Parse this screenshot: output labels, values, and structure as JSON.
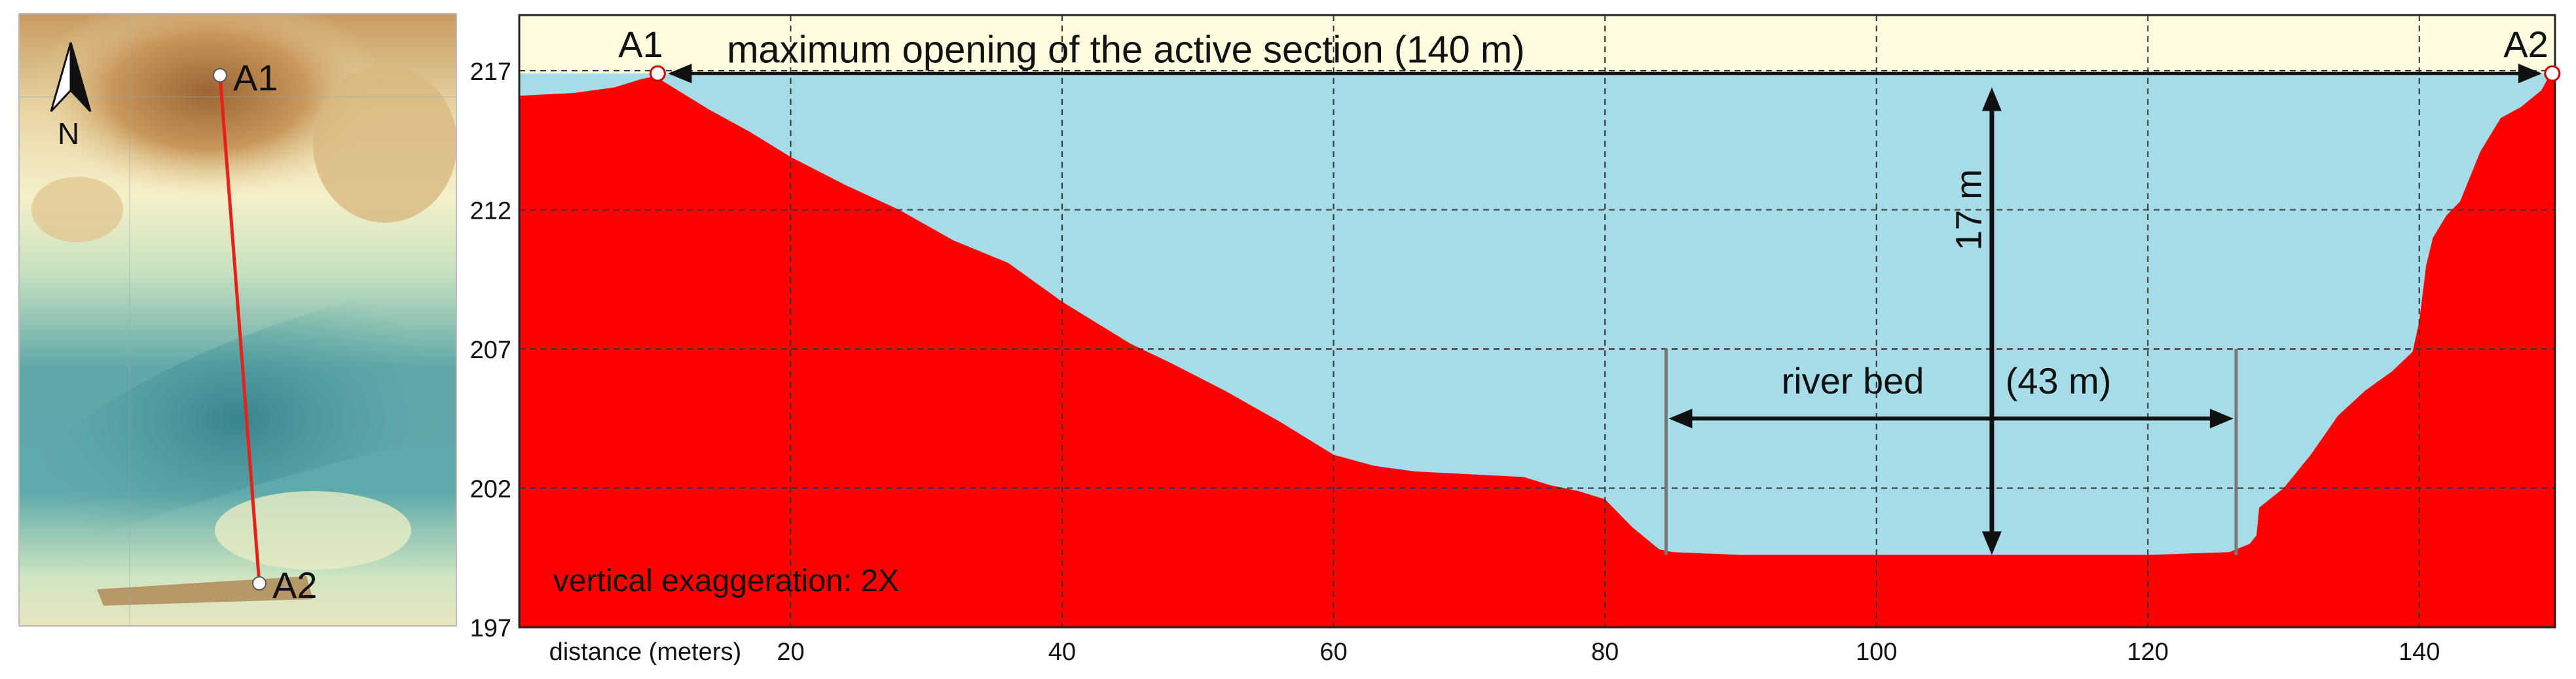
{
  "map": {
    "north_label": "N",
    "point_start_label": "A1",
    "point_end_label": "A2",
    "colors": {
      "transect": "#e8201a",
      "dem_high": "#a8703a",
      "dem_mid": "#f0e8b0",
      "dem_low": "#3e8e92"
    }
  },
  "profile": {
    "title_annotation": "maximum opening of the active section  (140 m)",
    "height_annotation": "17 m",
    "riverbed_label": "river bed",
    "riverbed_width": "(43 m)",
    "exaggeration_note": "vertical exaggeration: 2X",
    "endpoint_left": "A1",
    "endpoint_right": "A2",
    "x_axis_label": "distance (meters)",
    "colors": {
      "terrain": "#ff0000",
      "water": "#a6dce8",
      "sky": "#fffbdf",
      "grid": "#333333"
    }
  },
  "chart_data": {
    "type": "area",
    "xlabel": "distance (meters)",
    "ylabel": "",
    "xlim": [
      0,
      150
    ],
    "ylim": [
      197,
      219
    ],
    "x_ticks": [
      20,
      40,
      60,
      80,
      100,
      120,
      140
    ],
    "y_ticks": [
      197,
      202,
      207,
      212,
      217
    ],
    "water_level": 216.9,
    "riverbed_range": [
      84.5,
      126.5
    ],
    "max_depth_x": 108.5,
    "riverbed_bottom": 199.6,
    "grid": true,
    "profile": [
      [
        0,
        216.1
      ],
      [
        4,
        216.2
      ],
      [
        7,
        216.4
      ],
      [
        9,
        216.7
      ],
      [
        10,
        216.8
      ],
      [
        11,
        216.5
      ],
      [
        14,
        215.6
      ],
      [
        17,
        214.8
      ],
      [
        20,
        213.9
      ],
      [
        24,
        212.9
      ],
      [
        28,
        212.0
      ],
      [
        32,
        210.9
      ],
      [
        36,
        210.1
      ],
      [
        40,
        208.7
      ],
      [
        43,
        207.8
      ],
      [
        45,
        207.2
      ],
      [
        48,
        206.5
      ],
      [
        52,
        205.5
      ],
      [
        56,
        204.4
      ],
      [
        60,
        203.2
      ],
      [
        63,
        202.8
      ],
      [
        66,
        202.6
      ],
      [
        70,
        202.5
      ],
      [
        74,
        202.4
      ],
      [
        76,
        202.1
      ],
      [
        78,
        201.9
      ],
      [
        80,
        201.6
      ],
      [
        82,
        200.6
      ],
      [
        84,
        199.8
      ],
      [
        85,
        199.7
      ],
      [
        90,
        199.6
      ],
      [
        100,
        199.6
      ],
      [
        110,
        199.6
      ],
      [
        120,
        199.6
      ],
      [
        126,
        199.7
      ],
      [
        127.5,
        200.0
      ],
      [
        128,
        200.3
      ],
      [
        128.2,
        201.3
      ],
      [
        130,
        202.0
      ],
      [
        132,
        203.2
      ],
      [
        134,
        204.6
      ],
      [
        136,
        205.5
      ],
      [
        138,
        206.2
      ],
      [
        139.5,
        206.9
      ],
      [
        140,
        208.0
      ],
      [
        140.5,
        210.0
      ],
      [
        141,
        211.0
      ],
      [
        142,
        211.8
      ],
      [
        143,
        212.3
      ],
      [
        144.5,
        214.1
      ],
      [
        146,
        215.3
      ],
      [
        147.5,
        215.7
      ],
      [
        149,
        216.3
      ],
      [
        150,
        217.2
      ]
    ]
  }
}
